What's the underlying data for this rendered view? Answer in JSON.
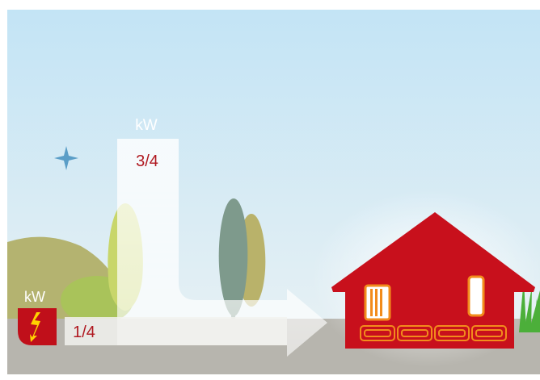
{
  "diagram": {
    "top_unit": "kW",
    "top_fraction": "3/4",
    "source_unit": "kW",
    "bottom_fraction": "1/4"
  },
  "colors": {
    "sky_top": "#c3e4f5",
    "sky_bottom": "#ebf2f4",
    "ground": "#b7b5ae",
    "house_red": "#c8101c",
    "heating_orange": "#f28c1c",
    "source_box_red": "#c00f1a",
    "lightning_yellow": "#ffd200",
    "star_blue": "#5a9ec7",
    "tree_dark": "#7e9a8c",
    "tree_olive": "#b9b26a",
    "bush_olive": "#a8ac5a",
    "bush_green": "#a8c454",
    "grass_green": "#4caf3a",
    "label_red": "#b01820"
  }
}
